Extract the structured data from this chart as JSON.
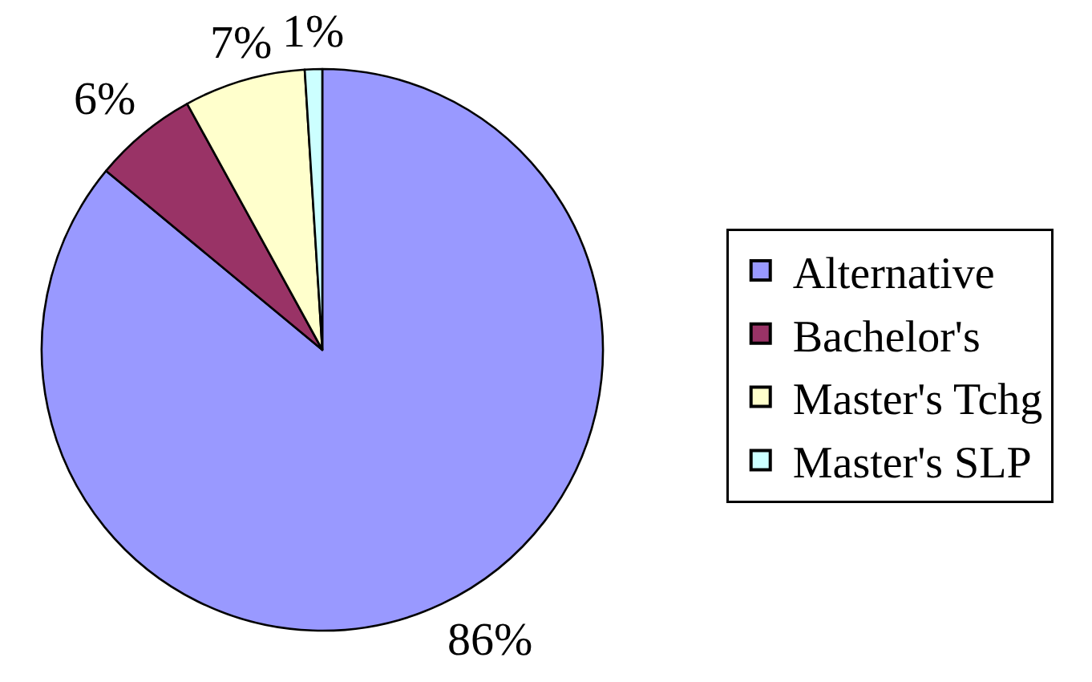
{
  "chart_data": {
    "type": "pie",
    "categories": [
      "Alternative",
      "Bachelor's",
      "Master's Tchg",
      "Master's SLP"
    ],
    "values": [
      86,
      6,
      7,
      1
    ],
    "colors": [
      "#9999ff",
      "#993366",
      "#ffffcc",
      "#ccffff"
    ],
    "value_labels": [
      "86%",
      "6%",
      "7%",
      "1%"
    ],
    "legend": "right"
  }
}
